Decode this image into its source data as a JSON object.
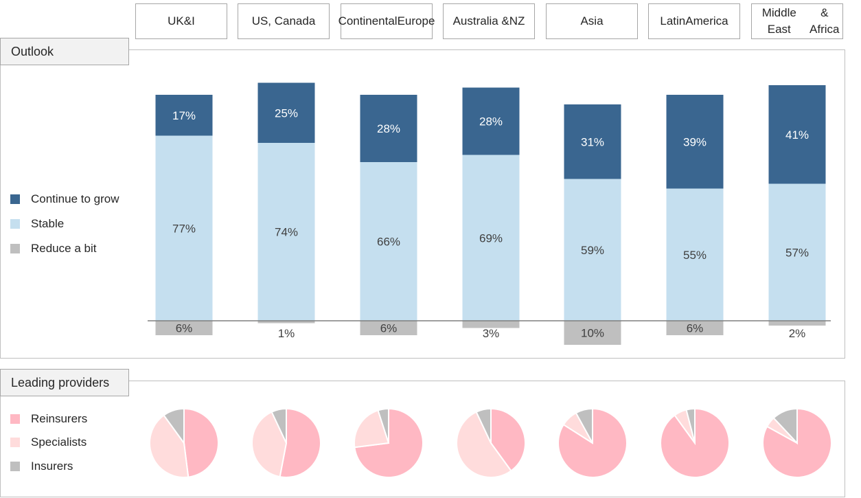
{
  "regions": [
    "UK&I",
    "US, Canada",
    "Continental Europe",
    "Australia & NZ",
    "Asia",
    "Latin America",
    "Middle East & Africa"
  ],
  "region_lines": [
    [
      "UK&I"
    ],
    [
      "US, Canada"
    ],
    [
      "Continental",
      "Europe"
    ],
    [
      "Australia &",
      "NZ"
    ],
    [
      "Asia"
    ],
    [
      "Latin",
      "America"
    ],
    [
      "Middle East",
      "& Africa"
    ]
  ],
  "outlook": {
    "title": "Outlook",
    "legend": [
      "Continue to grow",
      "Stable",
      "Reduce a bit"
    ]
  },
  "providers": {
    "title": "Leading providers",
    "legend": [
      "Reinsurers",
      "Specialists",
      "Insurers"
    ]
  },
  "colors": {
    "grow": "#3a6690",
    "stable": "#c5dfef",
    "reduce": "#bfbfbf",
    "reinsurers": "#ffb8c3",
    "specialists": "#ffdcdc",
    "insurers": "#bfbfbf"
  },
  "chart_data": [
    {
      "type": "bar",
      "stacked": true,
      "title": "Outlook",
      "categories": [
        "UK&I",
        "US, Canada",
        "Continental Europe",
        "Australia & NZ",
        "Asia",
        "Latin America",
        "Middle East & Africa"
      ],
      "series": [
        {
          "name": "Continue to grow",
          "values": [
            17,
            25,
            28,
            28,
            31,
            39,
            41
          ],
          "labels": [
            "17%",
            "25%",
            "28%",
            "28%",
            "31%",
            "39%",
            "41%"
          ]
        },
        {
          "name": "Stable",
          "values": [
            77,
            74,
            66,
            69,
            59,
            55,
            57
          ],
          "labels": [
            "77%",
            "74%",
            "66%",
            "69%",
            "59%",
            "55%",
            "57%"
          ]
        },
        {
          "name": "Reduce a bit",
          "values": [
            -6,
            -1,
            -6,
            -3,
            -10,
            -6,
            -2
          ],
          "labels": [
            "6%",
            "1%",
            "6%",
            "3%",
            "10%",
            "6%",
            "2%"
          ]
        }
      ],
      "legend": "left"
    },
    {
      "type": "pie",
      "title": "Leading providers",
      "categories": [
        "UK&I",
        "US, Canada",
        "Continental Europe",
        "Australia & NZ",
        "Asia",
        "Latin America",
        "Middle East & Africa"
      ],
      "series": [
        {
          "name": "Reinsurers",
          "values": [
            48,
            53,
            73,
            40,
            84,
            90,
            83
          ]
        },
        {
          "name": "Specialists",
          "values": [
            42,
            40,
            22,
            53,
            8,
            6,
            5
          ]
        },
        {
          "name": "Insurers",
          "values": [
            10,
            7,
            5,
            7,
            8,
            4,
            12
          ]
        }
      ],
      "legend": "left"
    }
  ]
}
